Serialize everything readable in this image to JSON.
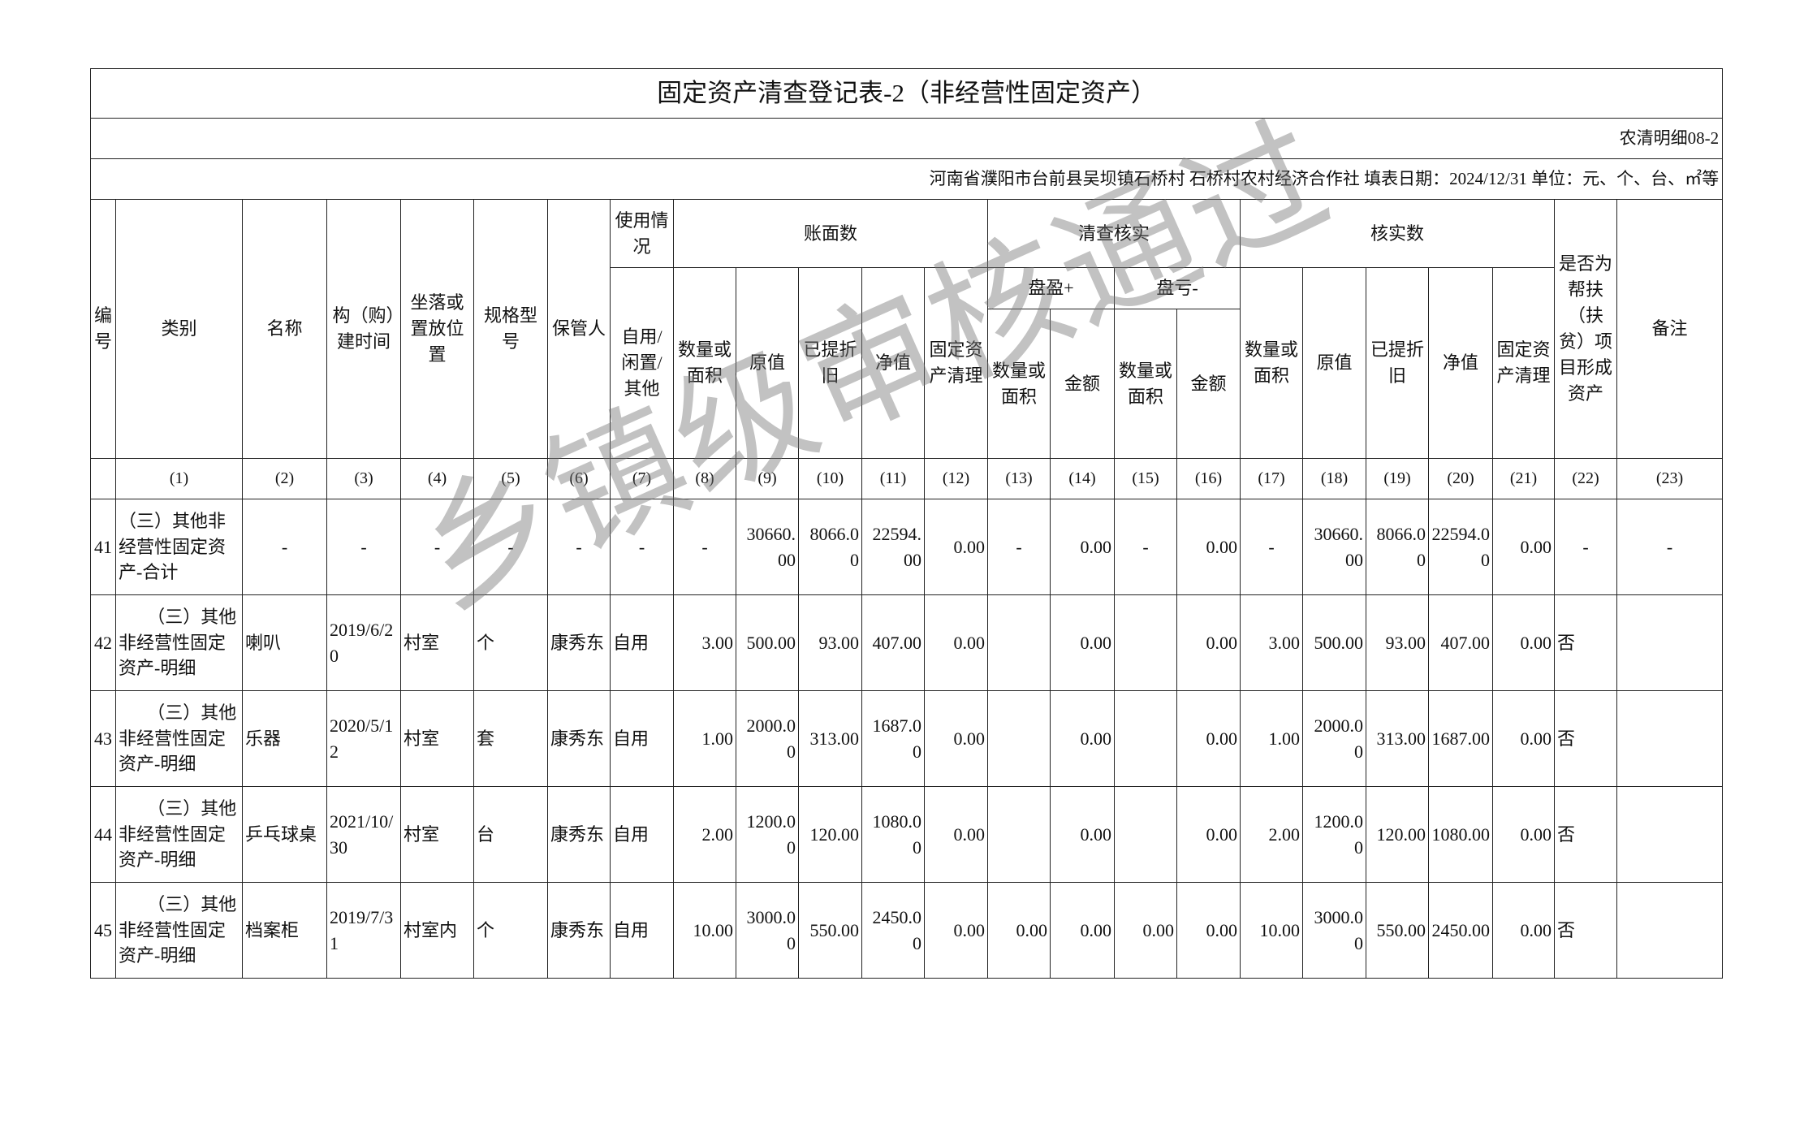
{
  "title": "固定资产清查登记表-2（非经营性固定资产）",
  "form_code": "农清明细08-2",
  "info_line": "河南省濮阳市台前县吴坝镇石桥村  石桥村农村经济合作社  填表日期：2024/12/31  单位：元、个、台、㎡等",
  "watermark": "乡镇级审核通过",
  "headers": {
    "no": "编号",
    "category": "类别",
    "name": "名称",
    "build_time": "构（购）建时间",
    "location": "坐落或置放位置",
    "spec": "规格型号",
    "keeper": "保管人",
    "usage": "使用情况",
    "usage_sub": "自用/闲置/其他",
    "book": "账面数",
    "check": "清查核实",
    "verified": "核实数",
    "poverty": "是否为帮扶（扶贫）项目形成资产",
    "remark": "备注",
    "qty": "数量或面积",
    "orig": "原值",
    "depr": "已提折旧",
    "net": "净值",
    "clear": "固定资产清理",
    "surplus": "盘盈+",
    "loss": "盘亏-",
    "amount": "金额"
  },
  "column_numbers": [
    "(1)",
    "(2)",
    "(3)",
    "(4)",
    "(5)",
    "(6)",
    "(7)",
    "(8)",
    "(9)",
    "(10)",
    "(11)",
    "(12)",
    "(13)",
    "(14)",
    "(15)",
    "(16)",
    "(17)",
    "(18)",
    "(19)",
    "(20)",
    "(21)",
    "(22)",
    "(23)"
  ],
  "rows": [
    [
      "41",
      "（三）其他非经营性固定资产-合计",
      "-",
      "-",
      "-",
      "-",
      "-",
      "-",
      "-",
      "30660.00",
      "8066.00",
      "22594.00",
      "0.00",
      "-",
      "0.00",
      "-",
      "0.00",
      "-",
      "30660.00",
      "8066.00",
      "22594.00",
      "0.00",
      "-",
      "-"
    ],
    [
      "42",
      "（三）其他非经营性固定资产-明细",
      "喇叭",
      "2019/6/20",
      "村室",
      "个",
      "康秀东",
      "自用",
      "3.00",
      "500.00",
      "93.00",
      "407.00",
      "0.00",
      "",
      "0.00",
      "",
      "0.00",
      "3.00",
      "500.00",
      "93.00",
      "407.00",
      "0.00",
      "否",
      ""
    ],
    [
      "43",
      "（三）其他非经营性固定资产-明细",
      "乐器",
      "2020/5/12",
      "村室",
      "套",
      "康秀东",
      "自用",
      "1.00",
      "2000.00",
      "313.00",
      "1687.00",
      "0.00",
      "",
      "0.00",
      "",
      "0.00",
      "1.00",
      "2000.00",
      "313.00",
      "1687.00",
      "0.00",
      "否",
      ""
    ],
    [
      "44",
      "（三）其他非经营性固定资产-明细",
      "乒乓球桌",
      "2021/10/30",
      "村室",
      "台",
      "康秀东",
      "自用",
      "2.00",
      "1200.00",
      "120.00",
      "1080.00",
      "0.00",
      "",
      "0.00",
      "",
      "0.00",
      "2.00",
      "1200.00",
      "120.00",
      "1080.00",
      "0.00",
      "否",
      ""
    ],
    [
      "45",
      "（三）其他非经营性固定资产-明细",
      "档案柜",
      "2019/7/31",
      "村室内",
      "个",
      "康秀东",
      "自用",
      "10.00",
      "3000.00",
      "550.00",
      "2450.00",
      "0.00",
      "0.00",
      "0.00",
      "0.00",
      "0.00",
      "10.00",
      "3000.00",
      "550.00",
      "2450.00",
      "0.00",
      "否",
      ""
    ]
  ]
}
